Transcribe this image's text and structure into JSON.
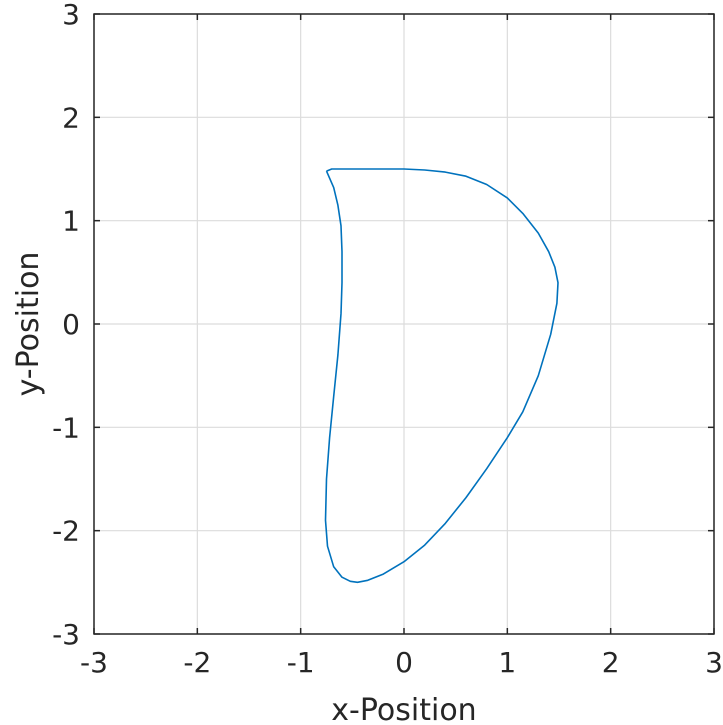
{
  "chart_data": {
    "type": "line",
    "title": "",
    "xlabel": "x-Position",
    "ylabel": "y-Position",
    "xlim": [
      -3,
      3
    ],
    "ylim": [
      -3,
      3
    ],
    "xticks": [
      -3,
      -2,
      -1,
      0,
      1,
      2,
      3
    ],
    "yticks": [
      -3,
      -2,
      -1,
      0,
      1,
      2,
      3
    ],
    "xtick_labels": [
      "-3",
      "-2",
      "-1",
      "0",
      "1",
      "2",
      "3"
    ],
    "ytick_labels": [
      "-3",
      "-2",
      "-1",
      "0",
      "1",
      "2",
      "3"
    ],
    "grid": true,
    "box": true,
    "series": [
      {
        "color": "#0072BD",
        "x": [
          -0.75,
          -0.7,
          -0.6,
          -0.4,
          -0.2,
          0.0,
          0.2,
          0.4,
          0.6,
          0.8,
          1.0,
          1.15,
          1.3,
          1.4,
          1.46,
          1.49,
          1.48,
          1.42,
          1.3,
          1.15,
          1.0,
          0.8,
          0.6,
          0.4,
          0.2,
          0.0,
          -0.2,
          -0.35,
          -0.45,
          -0.52,
          -0.6,
          -0.68,
          -0.74,
          -0.76,
          -0.75,
          -0.72,
          -0.68,
          -0.64,
          -0.61,
          -0.6,
          -0.6,
          -0.61,
          -0.64,
          -0.68,
          -0.75
        ],
        "y": [
          1.48,
          1.5,
          1.5,
          1.5,
          1.5,
          1.5,
          1.49,
          1.47,
          1.43,
          1.35,
          1.22,
          1.07,
          0.88,
          0.7,
          0.55,
          0.4,
          0.2,
          -0.1,
          -0.5,
          -0.85,
          -1.1,
          -1.4,
          -1.68,
          -1.93,
          -2.14,
          -2.3,
          -2.42,
          -2.48,
          -2.5,
          -2.49,
          -2.45,
          -2.35,
          -2.15,
          -1.9,
          -1.5,
          -1.1,
          -0.7,
          -0.3,
          0.1,
          0.4,
          0.7,
          0.95,
          1.15,
          1.32,
          1.48
        ]
      }
    ]
  }
}
